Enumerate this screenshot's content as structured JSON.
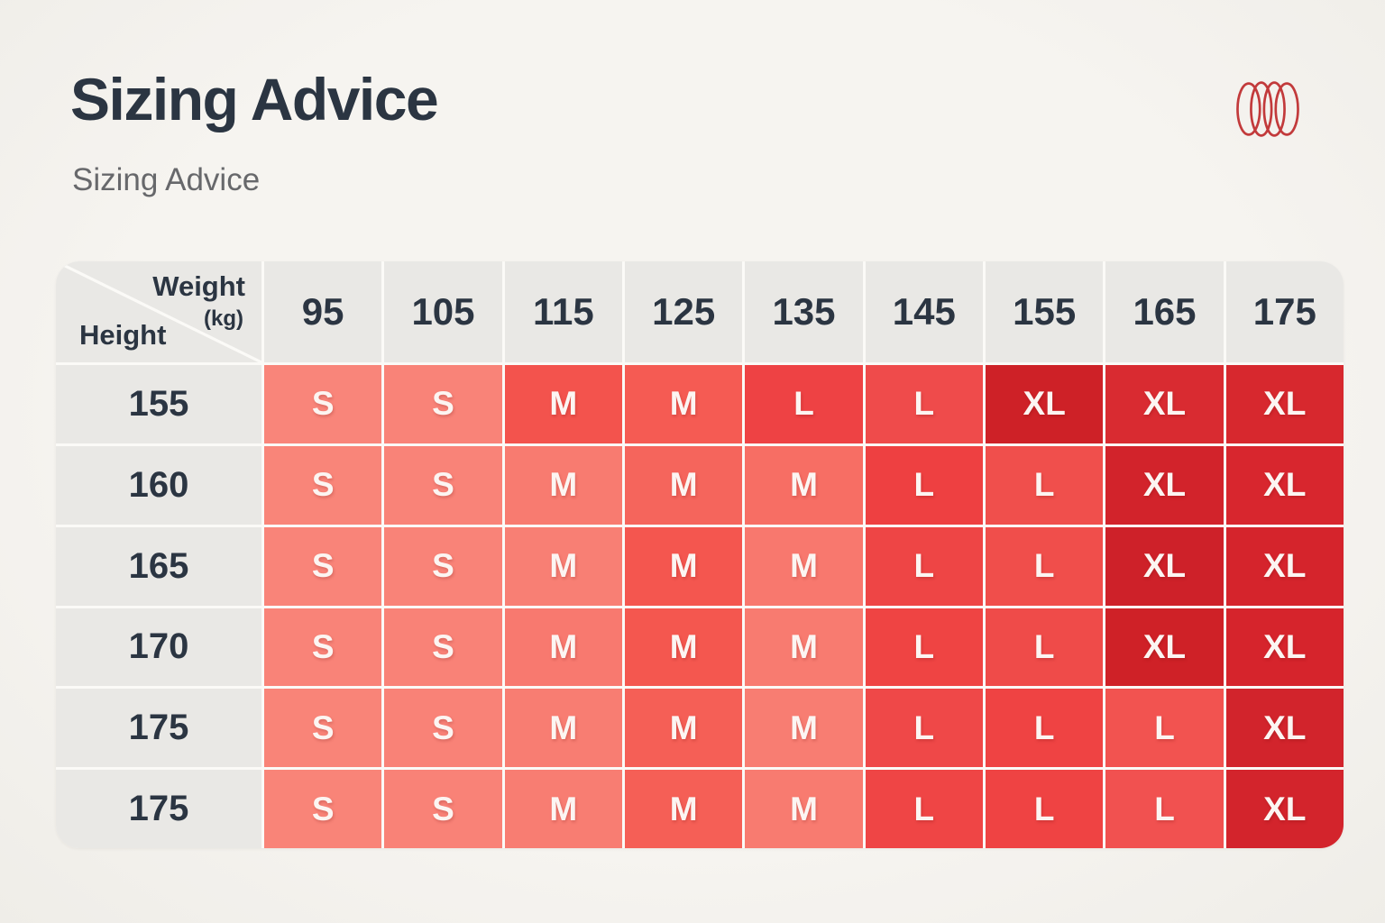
{
  "page": {
    "title": "Sizing Advice",
    "subtitle": "Sizing Advice"
  },
  "logo": {
    "icon": "overlapping-rings",
    "color": "#c23a3b"
  },
  "table": {
    "corner": {
      "top_label": "Weight",
      "top_unit": "(kg)",
      "bottom_label": "Height"
    },
    "weights": [
      "95",
      "105",
      "115",
      "125",
      "135",
      "145",
      "155",
      "165",
      "175"
    ],
    "rows": [
      {
        "height": "155",
        "cells": [
          {
            "size": "S",
            "bg": "#f9857a"
          },
          {
            "size": "S",
            "bg": "#f98378"
          },
          {
            "size": "M",
            "bg": "#f3534d"
          },
          {
            "size": "M",
            "bg": "#f55b53"
          },
          {
            "size": "L",
            "bg": "#ee4244"
          },
          {
            "size": "L",
            "bg": "#ef4b4b"
          },
          {
            "size": "XL",
            "bg": "#ce2127"
          },
          {
            "size": "XL",
            "bg": "#d92b31"
          },
          {
            "size": "XL",
            "bg": "#d7282e"
          }
        ]
      },
      {
        "height": "160",
        "cells": [
          {
            "size": "S",
            "bg": "#f98579"
          },
          {
            "size": "S",
            "bg": "#f98378"
          },
          {
            "size": "M",
            "bg": "#f87b70"
          },
          {
            "size": "M",
            "bg": "#f5655c"
          },
          {
            "size": "M",
            "bg": "#f76e64"
          },
          {
            "size": "L",
            "bg": "#ee4041"
          },
          {
            "size": "L",
            "bg": "#f04f4c"
          },
          {
            "size": "XL",
            "bg": "#d2232b"
          },
          {
            "size": "XL",
            "bg": "#d8262e"
          }
        ]
      },
      {
        "height": "165",
        "cells": [
          {
            "size": "S",
            "bg": "#f98479"
          },
          {
            "size": "S",
            "bg": "#f98378"
          },
          {
            "size": "M",
            "bg": "#f87f74"
          },
          {
            "size": "M",
            "bg": "#f4564f"
          },
          {
            "size": "M",
            "bg": "#f8786e"
          },
          {
            "size": "L",
            "bg": "#ee4545"
          },
          {
            "size": "L",
            "bg": "#f04e4b"
          },
          {
            "size": "XL",
            "bg": "#ce2129"
          },
          {
            "size": "XL",
            "bg": "#d5242c"
          }
        ]
      },
      {
        "height": "170",
        "cells": [
          {
            "size": "S",
            "bg": "#f98378"
          },
          {
            "size": "S",
            "bg": "#f98277"
          },
          {
            "size": "M",
            "bg": "#f8796f"
          },
          {
            "size": "M",
            "bg": "#f4574f"
          },
          {
            "size": "M",
            "bg": "#f87b70"
          },
          {
            "size": "L",
            "bg": "#ef4443"
          },
          {
            "size": "L",
            "bg": "#ef4b49"
          },
          {
            "size": "XL",
            "bg": "#cf2127"
          },
          {
            "size": "XL",
            "bg": "#d6242c"
          }
        ]
      },
      {
        "height": "175",
        "cells": [
          {
            "size": "S",
            "bg": "#f98478"
          },
          {
            "size": "S",
            "bg": "#f98277"
          },
          {
            "size": "M",
            "bg": "#f87d72"
          },
          {
            "size": "M",
            "bg": "#f55f56"
          },
          {
            "size": "M",
            "bg": "#f87d72"
          },
          {
            "size": "L",
            "bg": "#ef4848"
          },
          {
            "size": "L",
            "bg": "#ef4343"
          },
          {
            "size": "L",
            "bg": "#f25350"
          },
          {
            "size": "XL",
            "bg": "#d2242c"
          }
        ]
      },
      {
        "height": "175",
        "cells": [
          {
            "size": "S",
            "bg": "#f98478"
          },
          {
            "size": "S",
            "bg": "#f98277"
          },
          {
            "size": "M",
            "bg": "#f87d72"
          },
          {
            "size": "M",
            "bg": "#f55f56"
          },
          {
            "size": "M",
            "bg": "#f87b70"
          },
          {
            "size": "L",
            "bg": "#ef4545"
          },
          {
            "size": "L",
            "bg": "#ef4343"
          },
          {
            "size": "L",
            "bg": "#f15150"
          },
          {
            "size": "XL",
            "bg": "#d3242c"
          }
        ]
      }
    ]
  },
  "chart_data": {
    "type": "heatmap",
    "title": "Sizing Advice",
    "xlabel": "Weight (kg)",
    "ylabel": "Height",
    "columns": [
      95,
      105,
      115,
      125,
      135,
      145,
      155,
      165,
      175
    ],
    "rows": [
      155,
      160,
      165,
      170,
      175,
      175
    ],
    "values": [
      [
        "S",
        "S",
        "M",
        "M",
        "L",
        "L",
        "XL",
        "XL",
        "XL"
      ],
      [
        "S",
        "S",
        "M",
        "M",
        "M",
        "L",
        "L",
        "XL",
        "XL"
      ],
      [
        "S",
        "S",
        "M",
        "M",
        "M",
        "L",
        "L",
        "XL",
        "XL"
      ],
      [
        "S",
        "S",
        "M",
        "M",
        "M",
        "L",
        "L",
        "XL",
        "XL"
      ],
      [
        "S",
        "S",
        "M",
        "M",
        "M",
        "L",
        "L",
        "L",
        "XL"
      ],
      [
        "S",
        "S",
        "M",
        "M",
        "M",
        "L",
        "L",
        "L",
        "XL"
      ]
    ],
    "legend_position": "none",
    "grid": true,
    "color_scale": {
      "S": "#f98478",
      "M": "#f7776c",
      "L": "#ef4747",
      "XL": "#d4252d"
    }
  }
}
